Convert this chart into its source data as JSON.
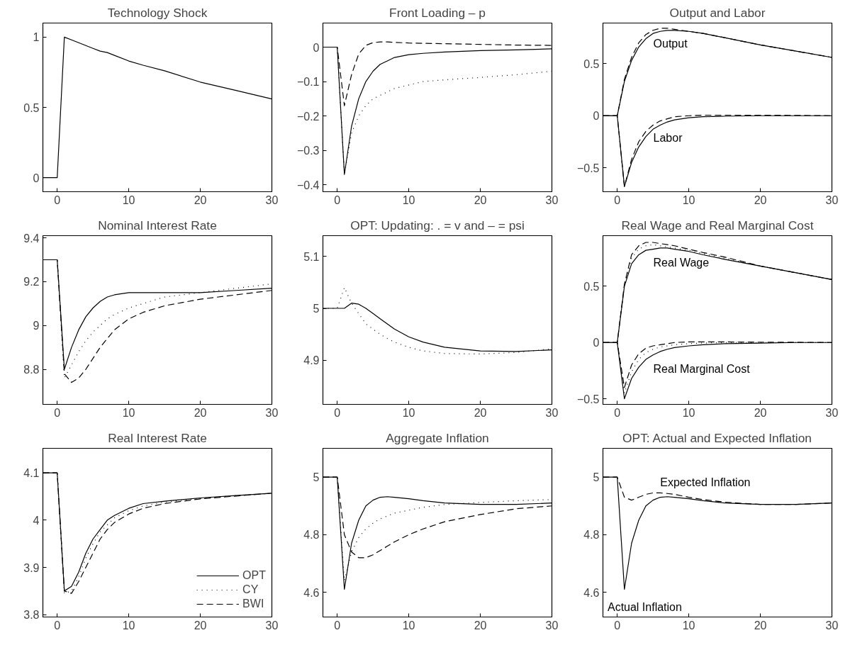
{
  "chart_data": [
    {
      "type": "line",
      "title": "Technology Shock",
      "x": [
        -2,
        -1,
        0,
        1,
        2,
        3,
        4,
        5,
        6,
        7,
        8,
        10,
        12,
        15,
        20,
        25,
        30
      ],
      "xlim": [
        -2,
        30
      ],
      "xticks": [
        0,
        10,
        20,
        30
      ],
      "ylim": [
        -0.1,
        1.1
      ],
      "yticks": [
        0,
        0.5,
        1
      ],
      "series": [
        {
          "color": "#000000",
          "line_style": "solid",
          "values": [
            0,
            0,
            0,
            1,
            0.98,
            0.96,
            0.94,
            0.92,
            0.9,
            0.89,
            0.87,
            0.83,
            0.8,
            0.76,
            0.68,
            0.62,
            0.56
          ]
        }
      ]
    },
    {
      "type": "line",
      "title": "Front Loading – p",
      "x": [
        -2,
        -1,
        0,
        1,
        2,
        3,
        4,
        5,
        6,
        7,
        8,
        10,
        12,
        15,
        20,
        25,
        30
      ],
      "xlim": [
        -2,
        30
      ],
      "xticks": [
        0,
        10,
        20,
        30
      ],
      "ylim": [
        -0.42,
        0.07
      ],
      "yticks": [
        {
          "value": -0.4,
          "label": "−0.4"
        },
        {
          "value": -0.3,
          "label": "−0.3"
        },
        {
          "value": -0.2,
          "label": "−0.2"
        },
        {
          "value": -0.1,
          "label": "−0.1"
        },
        0
      ],
      "series": [
        {
          "color": "#000000",
          "line_style": "solid",
          "values": [
            0,
            0,
            0,
            -0.37,
            -0.23,
            -0.15,
            -0.1,
            -0.07,
            -0.05,
            -0.04,
            -0.03,
            -0.022,
            -0.018,
            -0.014,
            -0.01,
            -0.008,
            -0.005
          ]
        },
        {
          "color": "#000000",
          "line_style": "dotted",
          "values": [
            0,
            0,
            0,
            -0.37,
            -0.25,
            -0.2,
            -0.17,
            -0.15,
            -0.14,
            -0.13,
            -0.12,
            -0.11,
            -0.1,
            -0.095,
            -0.088,
            -0.08,
            -0.07
          ]
        },
        {
          "color": "#000000",
          "line_style": "dashed",
          "values": [
            0,
            0,
            0,
            -0.17,
            -0.08,
            -0.02,
            0.005,
            0.013,
            0.015,
            0.015,
            0.014,
            0.012,
            0.011,
            0.01,
            0.008,
            0.006,
            0.005
          ]
        }
      ]
    },
    {
      "type": "line",
      "title": "Output and Labor",
      "x": [
        -2,
        -1,
        0,
        1,
        2,
        3,
        4,
        5,
        6,
        7,
        8,
        10,
        12,
        15,
        20,
        25,
        30
      ],
      "xlim": [
        -2,
        30
      ],
      "xticks": [
        0,
        10,
        20,
        30
      ],
      "ylim": [
        -0.73,
        0.89
      ],
      "yticks": [
        {
          "value": -0.5,
          "label": "−0.5"
        },
        0,
        0.5
      ],
      "annotations": [
        "Output",
        "Labor"
      ],
      "series": [
        {
          "color": "#000000",
          "line_style": "solid",
          "values": [
            0,
            0,
            0,
            0.33,
            0.53,
            0.66,
            0.74,
            0.79,
            0.81,
            0.82,
            0.82,
            0.81,
            0.79,
            0.75,
            0.68,
            0.62,
            0.56
          ]
        },
        {
          "color": "#000000",
          "line_style": "dashed",
          "values": [
            0,
            0,
            0,
            0.35,
            0.56,
            0.7,
            0.78,
            0.82,
            0.84,
            0.84,
            0.83,
            0.81,
            0.79,
            0.75,
            0.68,
            0.62,
            0.56
          ]
        },
        {
          "color": "#000000",
          "line_style": "solid",
          "values": [
            0,
            0,
            0,
            -0.68,
            -0.45,
            -0.3,
            -0.2,
            -0.13,
            -0.09,
            -0.06,
            -0.04,
            -0.02,
            -0.01,
            -0.005,
            0,
            0,
            0
          ]
        },
        {
          "color": "#000000",
          "line_style": "dashed",
          "values": [
            0,
            0,
            0,
            -0.68,
            -0.42,
            -0.25,
            -0.15,
            -0.09,
            -0.05,
            -0.03,
            -0.01,
            0,
            0.005,
            0.005,
            0.005,
            0.003,
            0
          ]
        }
      ]
    },
    {
      "type": "line",
      "title": "Nominal Interest Rate",
      "x": [
        -2,
        -1,
        0,
        1,
        2,
        3,
        4,
        5,
        6,
        7,
        8,
        10,
        12,
        15,
        20,
        25,
        30
      ],
      "xlim": [
        -2,
        30
      ],
      "xticks": [
        0,
        10,
        20,
        30
      ],
      "ylim": [
        8.64,
        9.41
      ],
      "yticks": [
        8.8,
        9,
        9.2,
        9.4
      ],
      "series": [
        {
          "color": "#000000",
          "line_style": "solid",
          "values": [
            9.3,
            9.3,
            9.3,
            8.8,
            8.9,
            8.98,
            9.04,
            9.08,
            9.11,
            9.13,
            9.14,
            9.15,
            9.15,
            9.15,
            9.15,
            9.16,
            9.17
          ]
        },
        {
          "color": "#000000",
          "line_style": "dotted",
          "values": [
            9.3,
            9.3,
            9.3,
            8.76,
            8.82,
            8.88,
            8.93,
            8.97,
            9.0,
            9.03,
            9.05,
            9.08,
            9.1,
            9.13,
            9.15,
            9.17,
            9.19
          ]
        },
        {
          "color": "#000000",
          "line_style": "dashed",
          "values": [
            9.3,
            9.3,
            9.3,
            8.78,
            8.74,
            8.76,
            8.8,
            8.85,
            8.9,
            8.94,
            8.98,
            9.03,
            9.06,
            9.09,
            9.12,
            9.14,
            9.16
          ]
        }
      ]
    },
    {
      "type": "line",
      "title": "OPT: Updating: . = v and – = psi",
      "x": [
        -2,
        -1,
        0,
        1,
        2,
        3,
        4,
        5,
        6,
        7,
        8,
        10,
        12,
        15,
        20,
        25,
        30
      ],
      "xlim": [
        -2,
        30
      ],
      "xticks": [
        0,
        10,
        20,
        30
      ],
      "ylim": [
        4.815,
        5.14
      ],
      "yticks": [
        4.9,
        5,
        5.1
      ],
      "series": [
        {
          "color": "#000000",
          "line_style": "solid",
          "values": [
            5,
            5,
            5,
            5,
            5.01,
            5.008,
            5.0,
            4.99,
            4.98,
            4.97,
            4.96,
            4.945,
            4.935,
            4.925,
            4.918,
            4.917,
            4.92
          ]
        },
        {
          "color": "#000000",
          "line_style": "dotted",
          "values": [
            5,
            5,
            5,
            5.04,
            5.01,
            4.99,
            4.97,
            4.96,
            4.95,
            4.942,
            4.935,
            4.925,
            4.918,
            4.913,
            4.912,
            4.915,
            4.922
          ]
        }
      ]
    },
    {
      "type": "line",
      "title": "Real Wage and Real Marginal Cost",
      "x": [
        -2,
        -1,
        0,
        1,
        2,
        3,
        4,
        5,
        6,
        7,
        8,
        10,
        12,
        15,
        20,
        25,
        30
      ],
      "xlim": [
        -2,
        30
      ],
      "xticks": [
        0,
        10,
        20,
        30
      ],
      "ylim": [
        -0.55,
        0.95
      ],
      "yticks": [
        {
          "value": -0.5,
          "label": "−0.5"
        },
        0,
        0.5
      ],
      "annotations": [
        "Real Wage",
        "Real Marginal Cost"
      ],
      "series": [
        {
          "color": "#000000",
          "line_style": "solid",
          "values": [
            0,
            0,
            0,
            0.5,
            0.7,
            0.78,
            0.82,
            0.83,
            0.84,
            0.84,
            0.83,
            0.81,
            0.78,
            0.74,
            0.68,
            0.62,
            0.56
          ]
        },
        {
          "color": "#000000",
          "line_style": "dotted",
          "values": [
            0,
            0,
            0,
            0.51,
            0.75,
            0.83,
            0.86,
            0.87,
            0.86,
            0.85,
            0.84,
            0.82,
            0.79,
            0.75,
            0.68,
            0.62,
            0.56
          ]
        },
        {
          "color": "#000000",
          "line_style": "dashed",
          "values": [
            0,
            0,
            0,
            0.52,
            0.78,
            0.86,
            0.89,
            0.89,
            0.88,
            0.87,
            0.86,
            0.83,
            0.8,
            0.76,
            0.68,
            0.62,
            0.56
          ]
        },
        {
          "color": "#000000",
          "line_style": "solid",
          "values": [
            0,
            0,
            0,
            -0.5,
            -0.32,
            -0.22,
            -0.15,
            -0.11,
            -0.08,
            -0.06,
            -0.045,
            -0.03,
            -0.02,
            -0.01,
            -0.005,
            0,
            0
          ]
        },
        {
          "color": "#000000",
          "line_style": "dotted",
          "values": [
            0,
            0,
            0,
            -0.45,
            -0.26,
            -0.15,
            -0.09,
            -0.06,
            -0.04,
            -0.03,
            -0.02,
            -0.01,
            -0.005,
            0,
            0,
            0,
            0
          ]
        },
        {
          "color": "#000000",
          "line_style": "dashed",
          "values": [
            0,
            0,
            0,
            -0.4,
            -0.2,
            -0.1,
            -0.05,
            -0.03,
            -0.02,
            -0.01,
            0,
            0.005,
            0.005,
            0.005,
            0.003,
            0.002,
            0
          ]
        }
      ]
    },
    {
      "type": "line",
      "title": "Real Interest Rate",
      "x": [
        -2,
        -1,
        0,
        1,
        2,
        3,
        4,
        5,
        6,
        7,
        8,
        10,
        12,
        15,
        20,
        25,
        30
      ],
      "xlim": [
        -2,
        30
      ],
      "xticks": [
        0,
        10,
        20,
        30
      ],
      "ylim": [
        3.795,
        4.152
      ],
      "yticks": [
        3.8,
        3.9,
        4,
        4.1
      ],
      "legend": "bottom right",
      "series": [
        {
          "name": "OPT",
          "color": "#000000",
          "line_style": "solid",
          "values": [
            4.1,
            4.1,
            4.1,
            3.85,
            3.86,
            3.89,
            3.93,
            3.96,
            3.98,
            4.0,
            4.01,
            4.025,
            4.035,
            4.04,
            4.047,
            4.052,
            4.057
          ]
        },
        {
          "name": "CY",
          "color": "#000000",
          "line_style": "dotted",
          "values": [
            4.1,
            4.1,
            4.1,
            3.845,
            3.85,
            3.88,
            3.92,
            3.95,
            3.975,
            3.99,
            4.005,
            4.02,
            4.03,
            4.038,
            4.046,
            4.052,
            4.057
          ]
        },
        {
          "name": "BWI",
          "color": "#000000",
          "line_style": "dashed",
          "values": [
            4.1,
            4.1,
            4.1,
            3.85,
            3.845,
            3.87,
            3.9,
            3.93,
            3.96,
            3.98,
            3.995,
            4.013,
            4.025,
            4.035,
            4.045,
            4.051,
            4.057
          ]
        }
      ]
    },
    {
      "type": "line",
      "title": "Aggregate Inflation",
      "x": [
        -2,
        -1,
        0,
        1,
        2,
        3,
        4,
        5,
        6,
        7,
        8,
        10,
        12,
        15,
        20,
        25,
        30
      ],
      "xlim": [
        -2,
        30
      ],
      "xticks": [
        0,
        10,
        20,
        30
      ],
      "ylim": [
        4.514,
        5.1
      ],
      "yticks": [
        4.6,
        4.8,
        5
      ],
      "series": [
        {
          "color": "#000000",
          "line_style": "solid",
          "values": [
            5,
            5,
            5,
            4.61,
            4.77,
            4.85,
            4.9,
            4.92,
            4.93,
            4.932,
            4.93,
            4.925,
            4.918,
            4.91,
            4.905,
            4.905,
            4.91
          ]
        },
        {
          "color": "#000000",
          "line_style": "dotted",
          "values": [
            5,
            5,
            5,
            4.64,
            4.74,
            4.79,
            4.82,
            4.84,
            4.855,
            4.865,
            4.875,
            4.885,
            4.895,
            4.905,
            4.912,
            4.918,
            4.922
          ]
        },
        {
          "color": "#000000",
          "line_style": "dashed",
          "values": [
            5,
            5,
            5,
            4.8,
            4.74,
            4.72,
            4.72,
            4.73,
            4.745,
            4.76,
            4.775,
            4.8,
            4.82,
            4.845,
            4.87,
            4.89,
            4.9
          ]
        }
      ]
    },
    {
      "type": "line",
      "title": "OPT: Actual and Expected Inflation",
      "x": [
        -2,
        -1,
        0,
        1,
        2,
        3,
        4,
        5,
        6,
        7,
        8,
        10,
        12,
        15,
        20,
        25,
        30
      ],
      "xlim": [
        -2,
        30
      ],
      "xticks": [
        0,
        10,
        20,
        30
      ],
      "ylim": [
        4.514,
        5.1
      ],
      "yticks": [
        4.6,
        4.8,
        5
      ],
      "annotations": [
        "Expected Inflation",
        "Actual Inflation"
      ],
      "series": [
        {
          "color": "#000000",
          "line_style": "solid",
          "values": [
            5,
            5,
            5,
            4.61,
            4.77,
            4.85,
            4.9,
            4.92,
            4.93,
            4.932,
            4.93,
            4.925,
            4.918,
            4.91,
            4.905,
            4.905,
            4.91
          ]
        },
        {
          "color": "#000000",
          "line_style": "dashed",
          "values": [
            5,
            5,
            5,
            4.93,
            4.92,
            4.93,
            4.94,
            4.945,
            4.945,
            4.943,
            4.94,
            4.93,
            4.922,
            4.913,
            4.905,
            4.905,
            4.91
          ]
        }
      ]
    }
  ]
}
